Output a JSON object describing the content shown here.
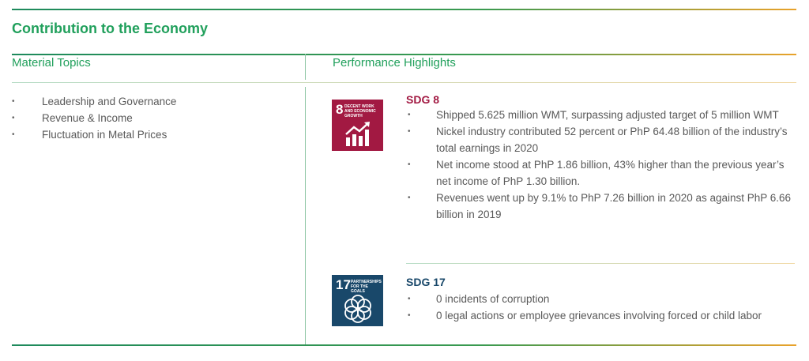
{
  "header": {
    "title": "Contribution to the Economy"
  },
  "columns": {
    "left_title": "Material Topics",
    "right_title": "Performance Highlights"
  },
  "material_topics": [
    "Leadership and Governance",
    "Revenue & Income",
    "Fluctuation in Metal Prices"
  ],
  "sdgs": [
    {
      "number": "8",
      "icon_text": "DECENT WORK AND ECONOMIC GROWTH",
      "title": "SDG 8",
      "items": [
        "Shipped 5.625 million WMT, surpassing adjusted target of 5 million WMT",
        "Nickel industry contributed 52 percent or PhP 64.48 billion of the industry’s total earnings in 2020",
        "Net income stood at PhP 1.86 billion, 43% higher than the previous year’s net income of PhP 1.30 billion.",
        "Revenues went up by 9.1% to PhP 7.26 billion in 2020 as against PhP 6.66 billion in 2019"
      ]
    },
    {
      "number": "17",
      "icon_text": "PARTNERSHIPS FOR THE GOALS",
      "title": "SDG 17",
      "items": [
        "0 incidents of corruption",
        "0 legal actions or employee grievances involving forced or child labor"
      ]
    }
  ]
}
